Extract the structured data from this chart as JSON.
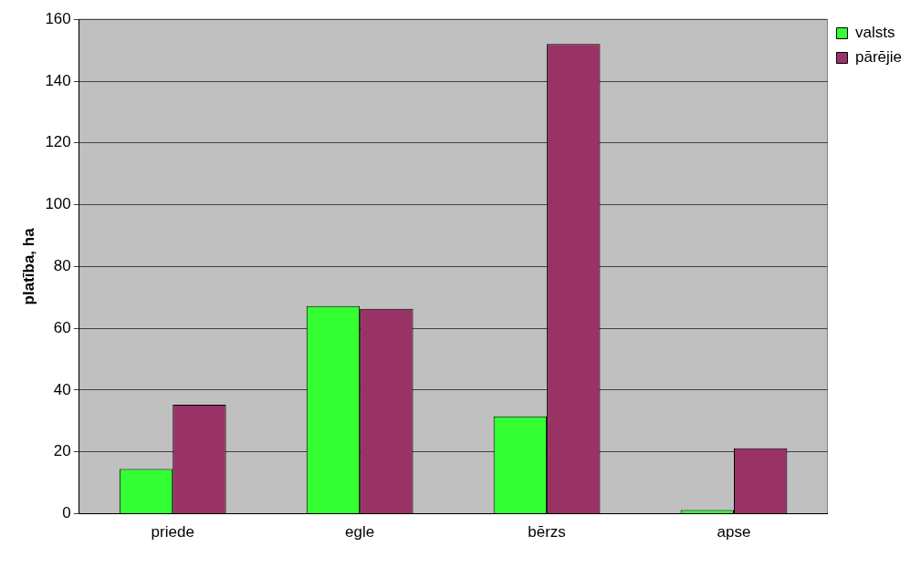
{
  "chart_data": {
    "type": "bar",
    "ylabel": "platība, ha",
    "categories": [
      "priede",
      "egle",
      "bērzs",
      "apse"
    ],
    "series": [
      {
        "name": "valsts",
        "color": "#33ff33",
        "values": [
          14.5,
          67.2,
          31.5,
          1.2
        ]
      },
      {
        "name": "pārējie",
        "color": "#993366",
        "values": [
          35.3,
          66.3,
          152,
          21.2
        ]
      }
    ],
    "ylim": [
      0,
      160
    ],
    "yticks": [
      0,
      20,
      40,
      60,
      80,
      100,
      120,
      140,
      160
    ],
    "grid": "y",
    "legend": "top right"
  }
}
